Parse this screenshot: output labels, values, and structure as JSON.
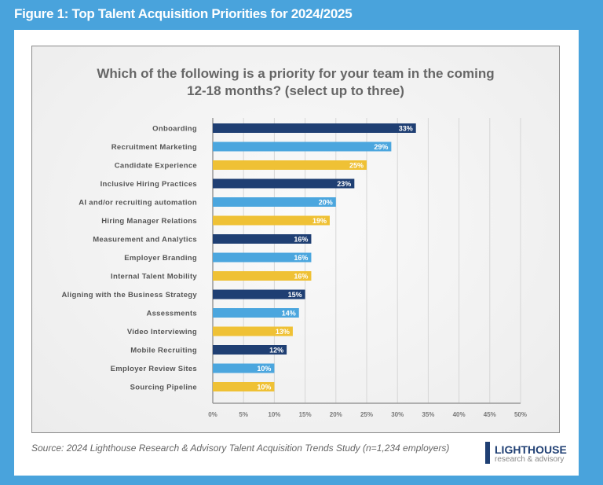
{
  "figure_title": "Figure 1: Top Talent Acquisition Priorities for 2024/2025",
  "source": "Source: 2024 Lighthouse Research & Advisory Talent Acquisition Trends Study (n=1,234 employers)",
  "logo": {
    "line1": "LIGHTHOUSE",
    "line2": "research & advisory"
  },
  "colors": {
    "navy": "#1f3f73",
    "blue": "#4ba6de",
    "yellow": "#efc135"
  },
  "chart_data": {
    "type": "bar",
    "orientation": "horizontal",
    "title_line1": "Which of the following is a priority for your team in the coming",
    "title_line2": "12-18 months? (select up to three)",
    "categories": [
      "Onboarding",
      "Recruitment Marketing",
      "Candidate Experience",
      "Inclusive Hiring Practices",
      "AI and/or recruiting automation",
      "Hiring Manager Relations",
      "Measurement and Analytics",
      "Employer Branding",
      "Internal Talent Mobility",
      "Aligning with the Business Strategy",
      "Assessments",
      "Video Interviewing",
      "Mobile Recruiting",
      "Employer Review Sites",
      "Sourcing Pipeline"
    ],
    "values": [
      33,
      29,
      25,
      23,
      20,
      19,
      16,
      16,
      16,
      15,
      14,
      13,
      12,
      10,
      10
    ],
    "labels": [
      "33%",
      "29%",
      "25%",
      "23%",
      "20%",
      "19%",
      "16%",
      "16%",
      "16%",
      "15%",
      "14%",
      "13%",
      "12%",
      "10%",
      "10%"
    ],
    "color_cycle": [
      "navy",
      "blue",
      "yellow"
    ],
    "xlim": [
      0,
      50
    ],
    "xticks": [
      "0%",
      "5%",
      "10%",
      "15%",
      "20%",
      "25%",
      "30%",
      "35%",
      "40%",
      "45%",
      "50%"
    ],
    "grid": true
  }
}
